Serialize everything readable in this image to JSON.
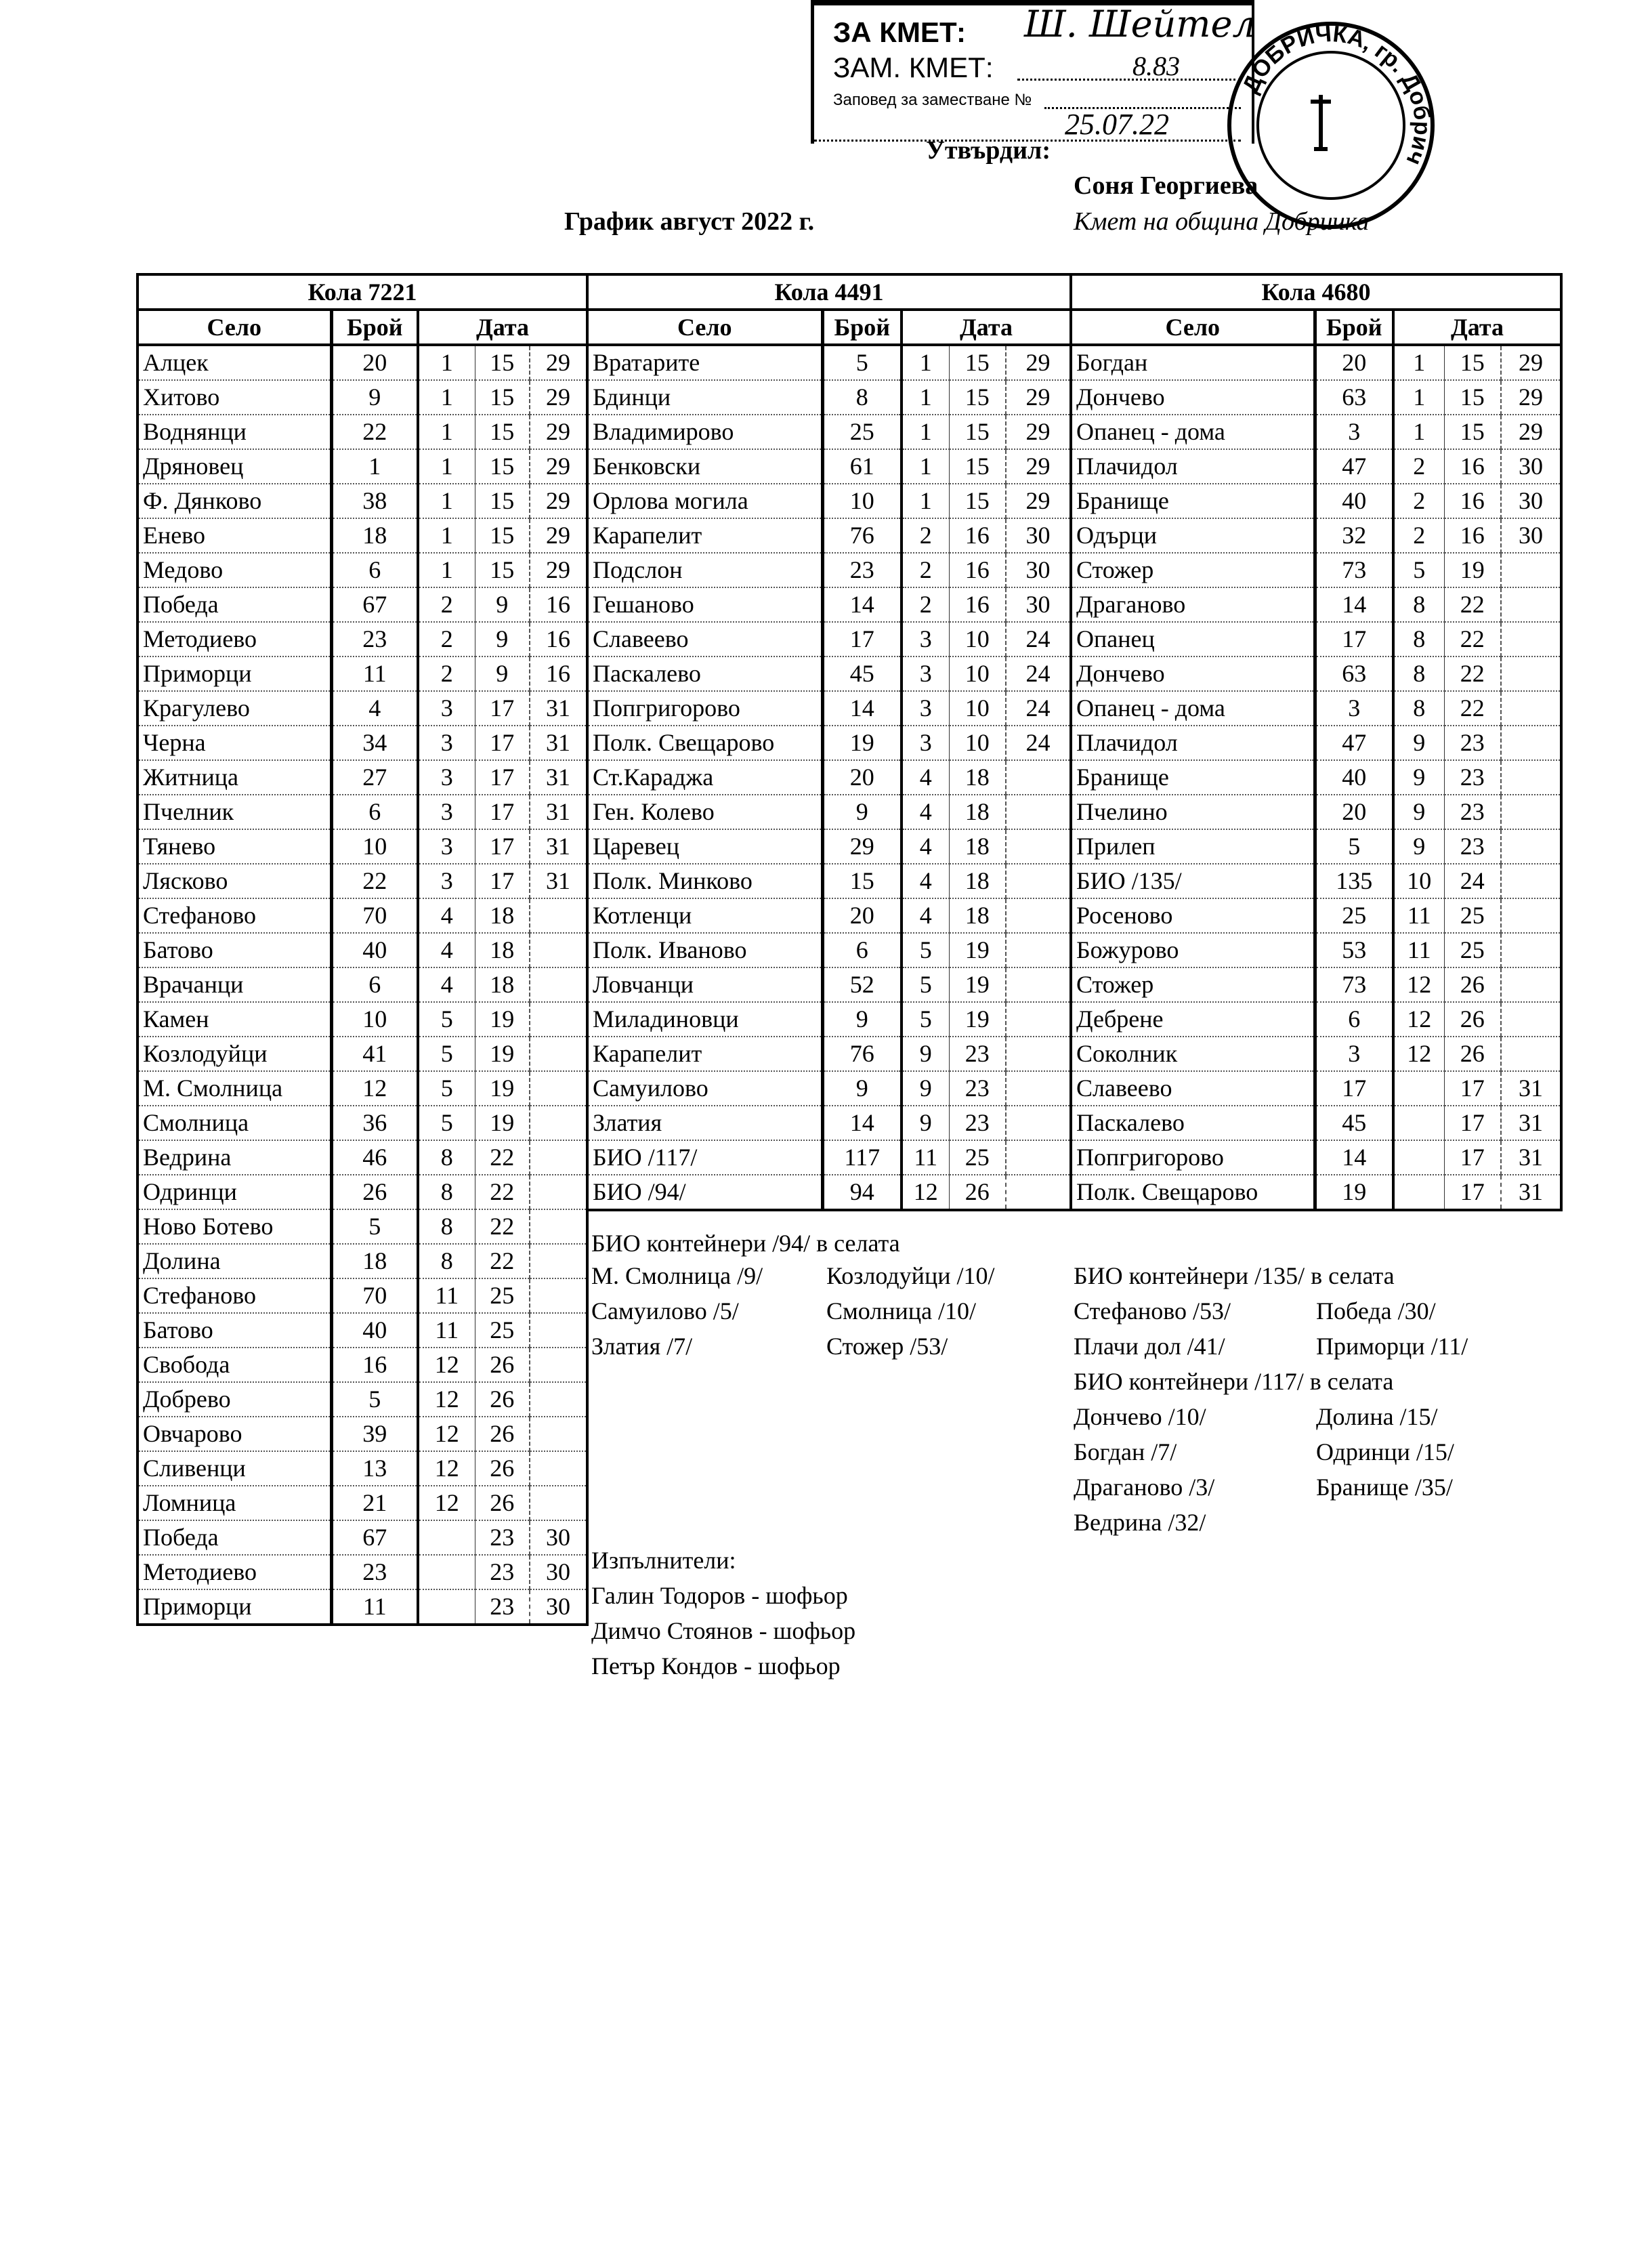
{
  "stamp": {
    "line1": "ЗА КМЕТ:",
    "line2": "ЗАМ. КМЕТ:",
    "line3": "Заповед за заместване №",
    "order_no_handwritten": "8.83",
    "date_handwritten": "25.07.22",
    "signature": "Ш. Шейтел",
    "round_seal_text": "ДОБРИЧКА, гр. Добрич"
  },
  "approval": {
    "label": "Утвърдил:",
    "name": "Соня Георгиева",
    "position": "Кмет на община Добричка"
  },
  "title": "График август 2022 г.",
  "headers": {
    "village": "Село",
    "count": "Брой",
    "date": "Дата"
  },
  "tables": [
    {
      "title": "Кола 7221",
      "rows": [
        [
          "Алцек",
          "20",
          "1",
          "15",
          "29"
        ],
        [
          "Хитово",
          "9",
          "1",
          "15",
          "29"
        ],
        [
          "Воднянци",
          "22",
          "1",
          "15",
          "29"
        ],
        [
          "Дряновец",
          "1",
          "1",
          "15",
          "29"
        ],
        [
          "Ф. Дянково",
          "38",
          "1",
          "15",
          "29"
        ],
        [
          "Енево",
          "18",
          "1",
          "15",
          "29"
        ],
        [
          "Медово",
          "6",
          "1",
          "15",
          "29"
        ],
        [
          "Победа",
          "67",
          "2",
          "9",
          "16"
        ],
        [
          "Методиево",
          "23",
          "2",
          "9",
          "16"
        ],
        [
          "Приморци",
          "11",
          "2",
          "9",
          "16"
        ],
        [
          "Крагулево",
          "4",
          "3",
          "17",
          "31"
        ],
        [
          "Черна",
          "34",
          "3",
          "17",
          "31"
        ],
        [
          "Житница",
          "27",
          "3",
          "17",
          "31"
        ],
        [
          "Пчелник",
          "6",
          "3",
          "17",
          "31"
        ],
        [
          "Тянево",
          "10",
          "3",
          "17",
          "31"
        ],
        [
          "Лясково",
          "22",
          "3",
          "17",
          "31"
        ],
        [
          "Стефаново",
          "70",
          "4",
          "18",
          ""
        ],
        [
          "Батово",
          "40",
          "4",
          "18",
          ""
        ],
        [
          "Врачанци",
          "6",
          "4",
          "18",
          ""
        ],
        [
          "Камен",
          "10",
          "5",
          "19",
          ""
        ],
        [
          "Козлодуйци",
          "41",
          "5",
          "19",
          ""
        ],
        [
          "М. Смолница",
          "12",
          "5",
          "19",
          ""
        ],
        [
          "Смолница",
          "36",
          "5",
          "19",
          ""
        ],
        [
          "Ведрина",
          "46",
          "8",
          "22",
          ""
        ],
        [
          "Одринци",
          "26",
          "8",
          "22",
          ""
        ],
        [
          "Ново Ботево",
          "5",
          "8",
          "22",
          ""
        ],
        [
          "Долина",
          "18",
          "8",
          "22",
          ""
        ],
        [
          "Стефаново",
          "70",
          "11",
          "25",
          ""
        ],
        [
          "Батово",
          "40",
          "11",
          "25",
          ""
        ],
        [
          "Свобода",
          "16",
          "12",
          "26",
          ""
        ],
        [
          "Добрево",
          "5",
          "12",
          "26",
          ""
        ],
        [
          "Овчарово",
          "39",
          "12",
          "26",
          ""
        ],
        [
          "Сливенци",
          "13",
          "12",
          "26",
          ""
        ],
        [
          "Ломница",
          "21",
          "12",
          "26",
          ""
        ],
        [
          "Победа",
          "67",
          "",
          "23",
          "30"
        ],
        [
          "Методиево",
          "23",
          "",
          "23",
          "30"
        ],
        [
          "Приморци",
          "11",
          "",
          "23",
          "30"
        ]
      ]
    },
    {
      "title": "Кола 4491",
      "rows": [
        [
          "Вратарите",
          "5",
          "1",
          "15",
          "29"
        ],
        [
          "Бдинци",
          "8",
          "1",
          "15",
          "29"
        ],
        [
          "Владимирово",
          "25",
          "1",
          "15",
          "29"
        ],
        [
          "Бенковски",
          "61",
          "1",
          "15",
          "29"
        ],
        [
          "Орлова могила",
          "10",
          "1",
          "15",
          "29"
        ],
        [
          "Карапелит",
          "76",
          "2",
          "16",
          "30"
        ],
        [
          "Подслон",
          "23",
          "2",
          "16",
          "30"
        ],
        [
          "Гешаново",
          "14",
          "2",
          "16",
          "30"
        ],
        [
          "Славеево",
          "17",
          "3",
          "10",
          "24"
        ],
        [
          "Паскалево",
          "45",
          "3",
          "10",
          "24"
        ],
        [
          "Попгригорово",
          "14",
          "3",
          "10",
          "24"
        ],
        [
          "Полк. Свещарово",
          "19",
          "3",
          "10",
          "24"
        ],
        [
          "Ст.Караджа",
          "20",
          "4",
          "18",
          ""
        ],
        [
          "Ген. Колево",
          "9",
          "4",
          "18",
          ""
        ],
        [
          "Царевец",
          "29",
          "4",
          "18",
          ""
        ],
        [
          "Полк. Минково",
          "15",
          "4",
          "18",
          ""
        ],
        [
          "Котленци",
          "20",
          "4",
          "18",
          ""
        ],
        [
          "Полк. Иваново",
          "6",
          "5",
          "19",
          ""
        ],
        [
          "Ловчанци",
          "52",
          "5",
          "19",
          ""
        ],
        [
          "Миладиновци",
          "9",
          "5",
          "19",
          ""
        ],
        [
          "Карапелит",
          "76",
          "9",
          "23",
          ""
        ],
        [
          "Самуилово",
          "9",
          "9",
          "23",
          ""
        ],
        [
          "Златия",
          "14",
          "9",
          "23",
          ""
        ],
        [
          "БИО /117/",
          "117",
          "11",
          "25",
          ""
        ],
        [
          "БИО /94/",
          "94",
          "12",
          "26",
          ""
        ]
      ]
    },
    {
      "title": "Кола 4680",
      "rows": [
        [
          "Богдан",
          "20",
          "1",
          "15",
          "29"
        ],
        [
          "Дончево",
          "63",
          "1",
          "15",
          "29"
        ],
        [
          "Опанец - дома",
          "3",
          "1",
          "15",
          "29"
        ],
        [
          "Плачидол",
          "47",
          "2",
          "16",
          "30"
        ],
        [
          "Бранище",
          "40",
          "2",
          "16",
          "30"
        ],
        [
          "Одърци",
          "32",
          "2",
          "16",
          "30"
        ],
        [
          "Стожер",
          "73",
          "5",
          "19",
          ""
        ],
        [
          "Драганово",
          "14",
          "8",
          "22",
          ""
        ],
        [
          "Опанец",
          "17",
          "8",
          "22",
          ""
        ],
        [
          "Дончево",
          "63",
          "8",
          "22",
          ""
        ],
        [
          "Опанец - дома",
          "3",
          "8",
          "22",
          ""
        ],
        [
          "Плачидол",
          "47",
          "9",
          "23",
          ""
        ],
        [
          "Бранище",
          "40",
          "9",
          "23",
          ""
        ],
        [
          "Пчелино",
          "20",
          "9",
          "23",
          ""
        ],
        [
          "Прилеп",
          "5",
          "9",
          "23",
          ""
        ],
        [
          "БИО /135/",
          "135",
          "10",
          "24",
          ""
        ],
        [
          "Росеново",
          "25",
          "11",
          "25",
          ""
        ],
        [
          "Божурово",
          "53",
          "11",
          "25",
          ""
        ],
        [
          "Стожер",
          "73",
          "12",
          "26",
          ""
        ],
        [
          "Дебрене",
          "6",
          "12",
          "26",
          ""
        ],
        [
          "Соколник",
          "3",
          "12",
          "26",
          ""
        ],
        [
          "Славеево",
          "17",
          "",
          "17",
          "31"
        ],
        [
          "Паскалево",
          "45",
          "",
          "17",
          "31"
        ],
        [
          "Попгригорово",
          "14",
          "",
          "17",
          "31"
        ],
        [
          "Полк. Свещарово",
          "19",
          "",
          "17",
          "31"
        ]
      ]
    }
  ],
  "notes": {
    "bio94": {
      "heading": "БИО контейнери /94/ в селата",
      "items": [
        "М. Смолница /9/",
        "Козлодуйци /10/",
        "Самуилово /5/",
        "Смолница /10/",
        "Златия /7/",
        "Стожер /53/"
      ]
    },
    "bio135": {
      "heading": "БИО контейнери /135/ в селата",
      "items": [
        "Стефаново /53/",
        "Победа /30/",
        "Плачи дол /41/",
        "Приморци /11/"
      ]
    },
    "bio117": {
      "heading": "БИО контейнери /117/ в селата",
      "items": [
        "Дончево /10/",
        "Долина /15/",
        "Богдан /7/",
        "Одринци /15/",
        "Драганово /3/",
        "Бранище /35/",
        "Ведрина /32/"
      ]
    }
  },
  "executors": {
    "label": "Изпълнители:",
    "people": [
      "Галин Тодоров - шофьор",
      "Димчо Стоянов - шофьор",
      "Петър Кондов - шофьор"
    ]
  }
}
